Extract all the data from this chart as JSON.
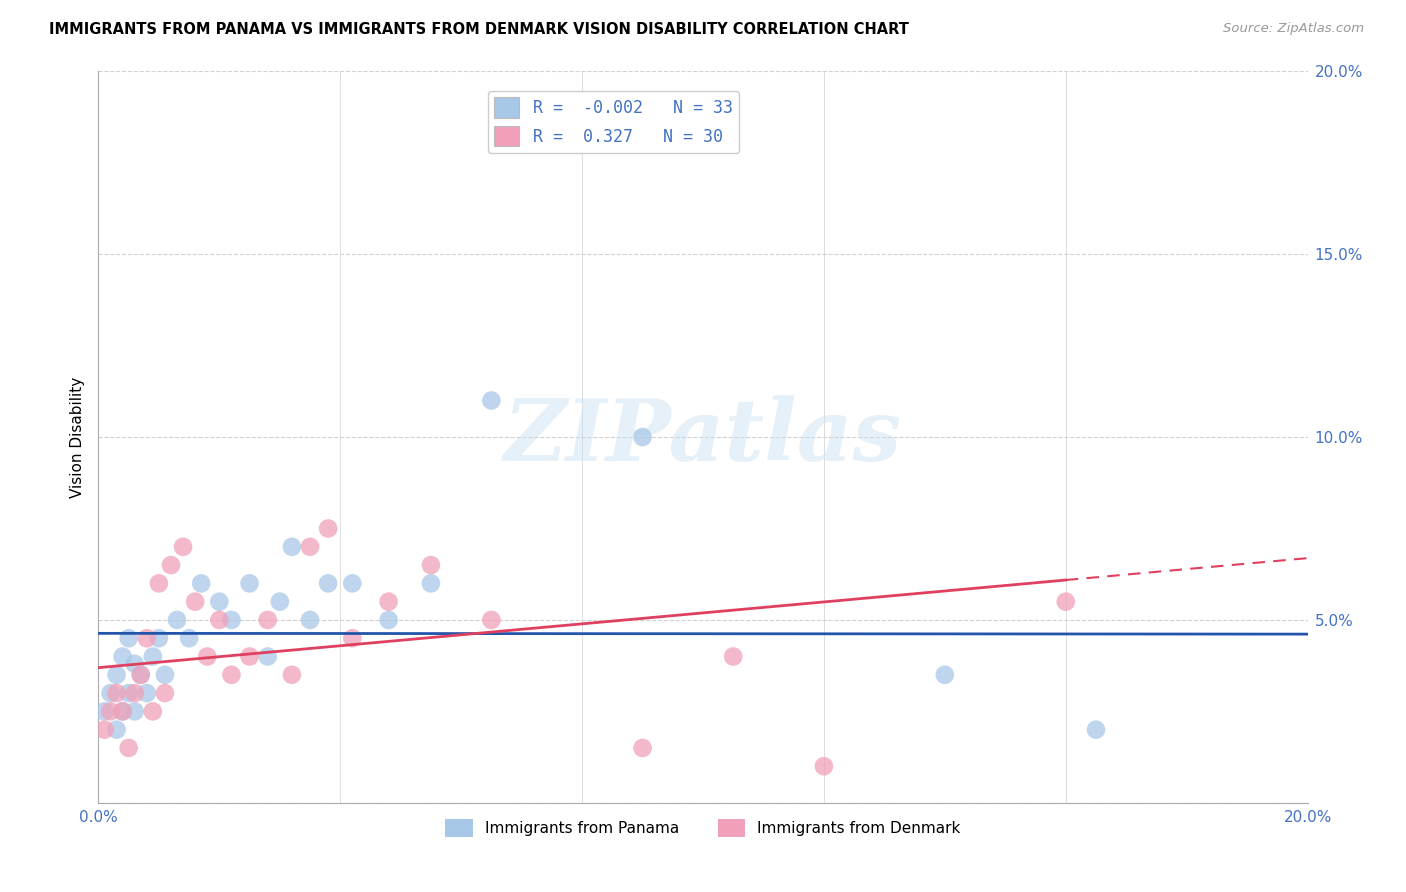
{
  "title": "IMMIGRANTS FROM PANAMA VS IMMIGRANTS FROM DENMARK VISION DISABILITY CORRELATION CHART",
  "source": "Source: ZipAtlas.com",
  "ylabel_label": "Vision Disability",
  "xlim": [
    0.0,
    0.2
  ],
  "ylim": [
    0.0,
    0.2
  ],
  "xticks": [
    0.0,
    0.04,
    0.08,
    0.12,
    0.16,
    0.2
  ],
  "yticks": [
    0.0,
    0.05,
    0.1,
    0.15,
    0.2
  ],
  "ytick_labels": [
    "",
    "5.0%",
    "10.0%",
    "15.0%",
    "20.0%"
  ],
  "xtick_labels": [
    "0.0%",
    "",
    "",
    "",
    "",
    "20.0%"
  ],
  "panama_color": "#a8c8e8",
  "denmark_color": "#f0a0b8",
  "panama_line_color": "#2255aa",
  "denmark_line_color": "#e04060",
  "panama_R": -0.002,
  "panama_N": 33,
  "denmark_R": 0.327,
  "denmark_N": 30,
  "panama_scatter_x": [
    0.001,
    0.002,
    0.003,
    0.003,
    0.004,
    0.004,
    0.005,
    0.005,
    0.006,
    0.006,
    0.007,
    0.008,
    0.009,
    0.01,
    0.011,
    0.013,
    0.015,
    0.017,
    0.02,
    0.022,
    0.025,
    0.028,
    0.03,
    0.032,
    0.035,
    0.038,
    0.042,
    0.048,
    0.055,
    0.065,
    0.09,
    0.14,
    0.165
  ],
  "panama_scatter_y": [
    0.025,
    0.03,
    0.02,
    0.035,
    0.025,
    0.04,
    0.03,
    0.045,
    0.025,
    0.038,
    0.035,
    0.03,
    0.04,
    0.045,
    0.035,
    0.05,
    0.045,
    0.06,
    0.055,
    0.05,
    0.06,
    0.04,
    0.055,
    0.07,
    0.05,
    0.06,
    0.06,
    0.05,
    0.06,
    0.11,
    0.1,
    0.035,
    0.02
  ],
  "denmark_scatter_x": [
    0.001,
    0.002,
    0.003,
    0.004,
    0.005,
    0.006,
    0.007,
    0.008,
    0.009,
    0.01,
    0.011,
    0.012,
    0.014,
    0.016,
    0.018,
    0.02,
    0.022,
    0.025,
    0.028,
    0.032,
    0.035,
    0.038,
    0.042,
    0.048,
    0.055,
    0.065,
    0.09,
    0.105,
    0.12,
    0.16
  ],
  "denmark_scatter_y": [
    0.02,
    0.025,
    0.03,
    0.025,
    0.015,
    0.03,
    0.035,
    0.045,
    0.025,
    0.06,
    0.03,
    0.065,
    0.07,
    0.055,
    0.04,
    0.05,
    0.035,
    0.04,
    0.05,
    0.035,
    0.07,
    0.075,
    0.045,
    0.055,
    0.065,
    0.05,
    0.015,
    0.04,
    0.01,
    0.055
  ],
  "watermark_text": "ZIPatlas",
  "background_color": "#ffffff",
  "grid_color": "#d0d0d0",
  "legend_blue": "#4472c4"
}
